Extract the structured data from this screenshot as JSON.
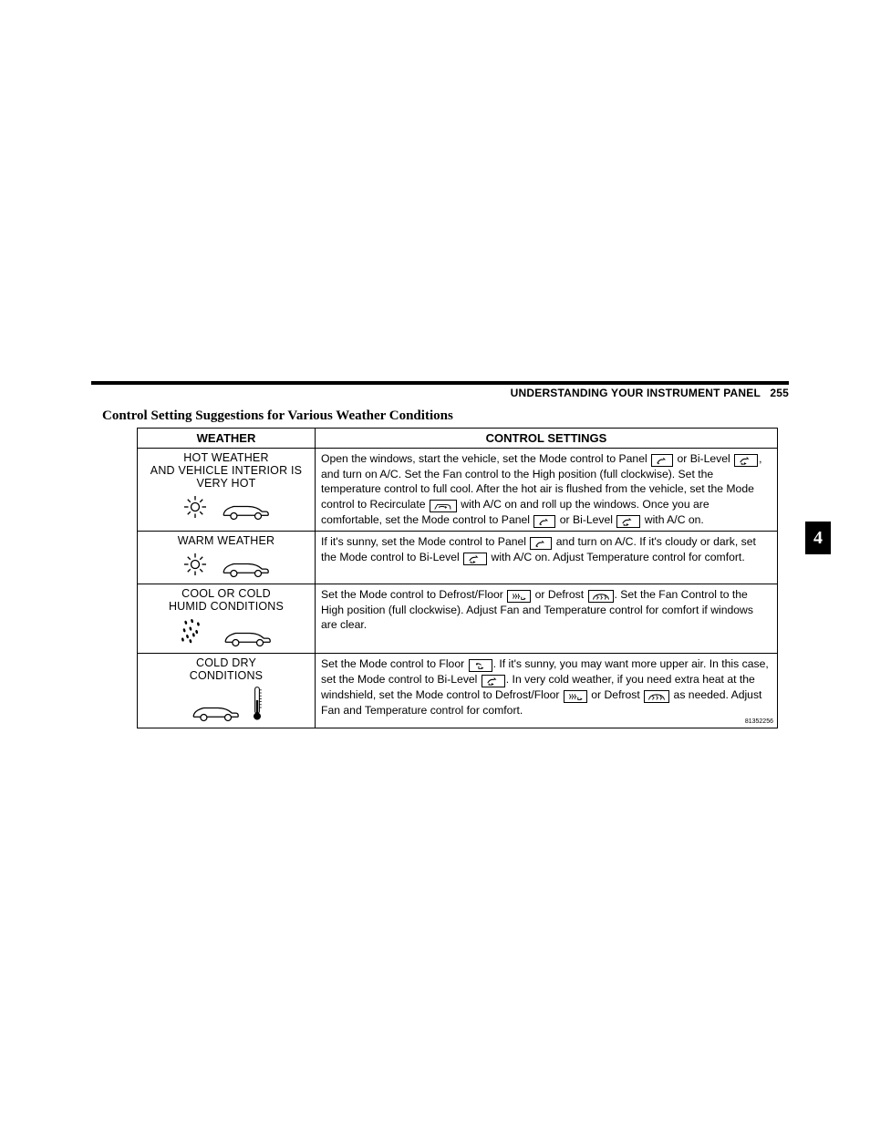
{
  "header": {
    "section_title": "UNDERSTANDING YOUR INSTRUMENT PANEL",
    "page_number": "255",
    "chapter_tab": "4"
  },
  "title": "Control Setting Suggestions for Various Weather Conditions",
  "table": {
    "columns": [
      "WEATHER",
      "CONTROL SETTINGS"
    ],
    "figure_id": "81352256",
    "rows": [
      {
        "weather_lines": [
          "HOT WEATHER",
          "AND VEHICLE INTERIOR IS",
          "VERY HOT"
        ],
        "weather_icons": [
          "sun",
          "car"
        ],
        "settings_html": "Open the windows, start the vehicle, set the Mode control to Panel {panel} or Bi-Level {bilevel}, and turn on A/C. Set the Fan control to the High position (full clockwise). Set the temperature control to full cool. After the hot air is flushed from the vehicle, set the Mode control to Recirculate {recirc} with A/C on and roll up the windows. Once you are comfortable, set the Mode control to Panel {panel} or Bi-Level {bilevel} with A/C on."
      },
      {
        "weather_lines": [
          "WARM WEATHER"
        ],
        "weather_icons": [
          "sun",
          "car"
        ],
        "settings_html": "If it's sunny, set the Mode control to Panel {panel} and turn on A/C. If it's cloudy or dark, set the Mode control to Bi-Level {bilevel} with A/C on. Adjust Temperature control for comfort."
      },
      {
        "weather_lines": [
          "COOL OR COLD",
          "HUMID CONDITIONS"
        ],
        "weather_icons": [
          "rain",
          "car"
        ],
        "settings_html": "Set the Mode control to Defrost/Floor {deffloor} or Defrost {defrost}. Set the Fan Control to the High position (full clockwise). Adjust Fan and Temperature control for comfort if windows are clear."
      },
      {
        "weather_lines": [
          "COLD DRY",
          "CONDITIONS"
        ],
        "weather_icons": [
          "car",
          "thermometer"
        ],
        "settings_html": "Set the Mode control to Floor {floor}. If it's sunny, you may want more upper air. In this case, set the Mode control to Bi-Level {bilevel}. In very cold weather, if you need extra heat at the windshield, set the Mode control to Defrost/Floor {deffloor} or Defrost {defrost} as needed. Adjust Fan and Temperature control for comfort."
      }
    ]
  },
  "icon_svgs": {
    "panel": "<svg width=16 height=10 viewBox='0 0 24 14'><path d='M4 12 Q8 4 14 6' stroke='#000' fill='none' stroke-width='1.5'/><path d='M14 2 L18 6 L14 6 Z' fill='#000'/><circle cx='6' cy='12' r='1.2' fill='#000'/></svg>",
    "bilevel": "<svg width=18 height=10 viewBox='0 0 26 14'><path d='M4 10 Q8 3 14 5' stroke='#000' fill='none' stroke-width='1.5'/><path d='M14 1 L18 5 L14 5 Z' fill='#000'/><path d='M6 11 L6 13 L10 13' stroke='#000' fill='none' stroke-width='1.5'/><path d='M10 11 L14 13 L10 15 Z' fill='#000' transform='translate(0,-1)'/></svg>",
    "recirc": "<svg width=22 height=10 viewBox='0 0 30 14'><path d='M2 12 L6 5 L20 5 Q26 5 26 10 L26 12' stroke='#000' fill='none' stroke-width='1.3'/><path d='M8 9 Q14 6 18 9' stroke='#000' fill='none' stroke-width='1.3'/><path d='M18 7 L21 9 L18 11 Z' fill='#000'/></svg>",
    "deffloor": "<svg width=18 height=10 viewBox='0 0 26 14'><path d='M4 3 Q4 6 6 7 Q4 8 4 11' stroke='#000' fill='none' stroke-width='1.2'/><path d='M8 3 Q8 6 10 7 Q8 8 8 11' stroke='#000' fill='none' stroke-width='1.2'/><path d='M12 3 Q12 6 14 7 Q12 8 12 11' stroke='#000' fill='none' stroke-width='1.2'/><path d='M17 8 L17 12 L21 12' stroke='#000' fill='none' stroke-width='1.3'/><path d='M21 10 L24 12 L21 14 Z' fill='#000' transform='translate(0,-1)'/></svg>",
    "defrost": "<svg width=20 height=10 viewBox='0 0 28 14'><path d='M2 12 Q4 4 14 4 Q24 4 26 12' stroke='#000' fill='none' stroke-width='1.3'/><path d='M8 5 Q8 8 10 9 Q8 10 8 12' stroke='#000' fill='none' stroke-width='1.1'/><path d='M14 5 Q14 8 16 9 Q14 10 14 12' stroke='#000' fill='none' stroke-width='1.1'/><path d='M20 5 Q20 8 22 9 Q20 10 20 12' stroke='#000' fill='none' stroke-width='1.1'/></svg>",
    "floor": "<svg width=18 height=10 viewBox='0 0 26 14'><path d='M6 4 Q10 3 14 6' stroke='#000' fill='none' stroke-width='1.3'/><circle cx='7' cy='5' r='1.3' fill='#000'/><path d='M10 8 L10 12 L14 12' stroke='#000' fill='none' stroke-width='1.3'/><path d='M14 10 L18 12 L14 14 Z' fill='#000' transform='translate(0,-1)'/></svg>"
  },
  "weather_svgs": {
    "sun": "<svg width=30 height=30 viewBox='0 0 40 40'><circle cx='20' cy='20' r='6' stroke='#000' fill='none' stroke-width='1.8'/><g stroke='#000' stroke-width='1.8'><line x1='20' y1='4' x2='20' y2='10'/><line x1='20' y1='30' x2='20' y2='36'/><line x1='4' y1='20' x2='10' y2='20'/><line x1='30' y1='20' x2='36' y2='20'/><line x1='9' y1='9' x2='13' y2='13'/><line x1='27' y1='27' x2='31' y2='31'/><line x1='9' y1='31' x2='13' y2='27'/><line x1='27' y1='13' x2='31' y2='9'/></g></svg>",
    "car": "<svg width=56 height=24 viewBox='0 0 80 34'><path d='M6 26 Q6 16 22 12 L44 12 Q58 12 66 20 L72 20 Q76 20 76 24 L76 26' stroke='#000' fill='none' stroke-width='1.8'/><circle cx='22' cy='27' r='5' stroke='#000' fill='none' stroke-width='1.8'/><circle cx='60' cy='27' r='5' stroke='#000' fill='none' stroke-width='1.8'/><line x1='6' y1='26' x2='17' y2='26' stroke='#000' stroke-width='1.8'/><line x1='27' y1='26' x2='55' y2='26' stroke='#000' stroke-width='1.8'/><line x1='65' y1='26' x2='76' y2='26' stroke='#000' stroke-width='1.8'/></svg>",
    "rain": "<svg width=34 height=34 viewBox='0 0 40 40'><g fill='#000'><ellipse cx='8' cy='8' rx='1.5' ry='2.5' transform='rotate(-15 8 8)'/><ellipse cx='16' cy='6' rx='1.5' ry='2.5' transform='rotate(-15 16 6)'/><ellipse cx='24' cy='10' rx='1.5' ry='2.5' transform='rotate(-15 24 10)'/><ellipse cx='6' cy='18' rx='1.5' ry='2.5' transform='rotate(-15 6 18)'/><ellipse cx='14' cy='16' rx='1.5' ry='2.5' transform='rotate(-15 14 16)'/><ellipse cx='22' cy='20' rx='1.5' ry='2.5' transform='rotate(-15 22 20)'/><ellipse cx='10' cy='26' rx='1.5' ry='2.5' transform='rotate(-15 10 26)'/><ellipse cx='18' cy='24' rx='1.5' ry='2.5' transform='rotate(-15 18 24)'/><ellipse cx='4' cy='30' rx='1.5' ry='2.5' transform='rotate(-15 4 30)'/><ellipse cx='14' cy='32' rx='1.5' ry='2.5' transform='rotate(-15 14 32)'/></g></svg>",
    "thermometer": "<svg width=12 height=40 viewBox='0 0 14 50'><rect x='4' y='2' width='6' height='36' rx='3' stroke='#000' fill='none' stroke-width='1.3'/><circle cx='7' cy='42' r='5' fill='#000'/><rect x='5.5' y='20' width='3' height='20' fill='#000'/><g stroke='#000' stroke-width='1'><line x1='10' y1='6' x2='13' y2='6'/><line x1='10' y1='10' x2='13' y2='10'/><line x1='10' y1='14' x2='13' y2='14'/><line x1='10' y1='18' x2='13' y2='18'/><line x1='10' y1='22' x2='13' y2='22'/><line x1='10' y1='26' x2='13' y2='26'/><line x1='10' y1='30' x2='13' y2='30'/></g></svg>"
  }
}
